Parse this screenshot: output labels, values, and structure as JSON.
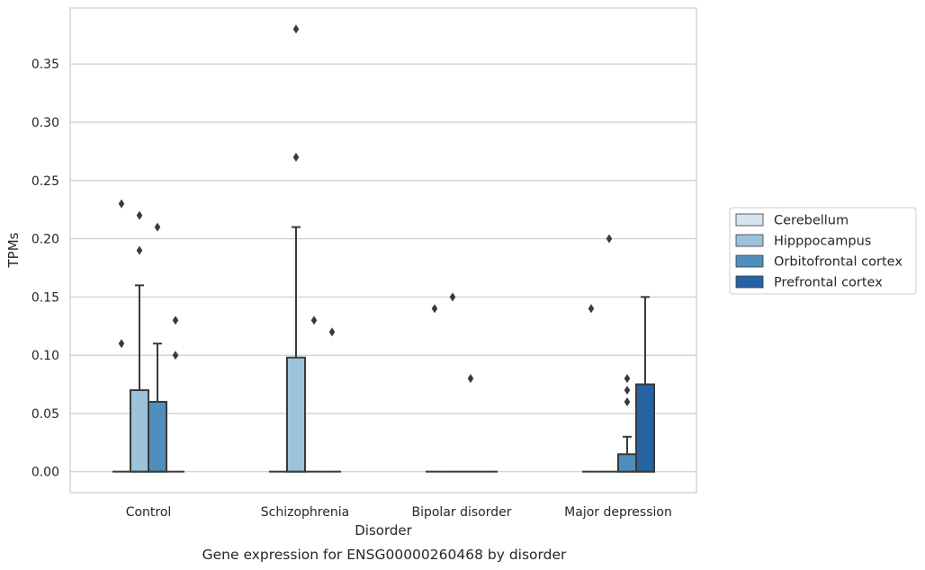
{
  "caption": "Gene expression for ENSG00000260468 by disorder",
  "colors": {
    "Cerebellum": "#d6e5f2",
    "Hipppocampus": "#9cc2dc",
    "Orbitofrontal cortex": "#4f8fbd",
    "Prefrontal cortex": "#2464a2",
    "grid": "#cccccc",
    "line": "#3a3a3a"
  },
  "chart_data": {
    "type": "box",
    "xlabel": "Disorder",
    "ylabel": "TPMs",
    "categories": [
      "Control",
      "Schizophrenia",
      "Bipolar disorder",
      "Major depression"
    ],
    "ylim": [
      -0.018,
      0.398
    ],
    "yticks": [
      0.0,
      0.05,
      0.1,
      0.15,
      0.2,
      0.25,
      0.3,
      0.35
    ],
    "ytick_labels": [
      "0.00",
      "0.05",
      "0.10",
      "0.15",
      "0.20",
      "0.25",
      "0.30",
      "0.35"
    ],
    "grid": true,
    "legend_position": "right",
    "series": [
      {
        "name": "Cerebellum",
        "boxes": [
          {
            "q1": 0,
            "median": 0,
            "q3": 0,
            "whisker_low": 0,
            "whisker_high": 0,
            "outliers": [
              0.11,
              0.23
            ]
          },
          {
            "q1": 0,
            "median": 0,
            "q3": 0,
            "whisker_low": 0,
            "whisker_high": 0,
            "outliers": []
          },
          {
            "q1": 0,
            "median": 0,
            "q3": 0,
            "whisker_low": 0,
            "whisker_high": 0,
            "outliers": [
              0.14
            ]
          },
          {
            "q1": 0,
            "median": 0,
            "q3": 0,
            "whisker_low": 0,
            "whisker_high": 0,
            "outliers": [
              0.14
            ]
          }
        ]
      },
      {
        "name": "Hipppocampus",
        "boxes": [
          {
            "q1": 0,
            "median": 0,
            "q3": 0.07,
            "whisker_low": 0,
            "whisker_high": 0.16,
            "outliers": [
              0.19,
              0.22
            ]
          },
          {
            "q1": 0,
            "median": 0,
            "q3": 0.098,
            "whisker_low": 0,
            "whisker_high": 0.21,
            "outliers": [
              0.27,
              0.38
            ]
          },
          {
            "q1": 0,
            "median": 0,
            "q3": 0,
            "whisker_low": 0,
            "whisker_high": 0,
            "outliers": [
              0.15
            ]
          },
          {
            "q1": 0,
            "median": 0,
            "q3": 0,
            "whisker_low": 0,
            "whisker_high": 0,
            "outliers": [
              0.2
            ]
          }
        ]
      },
      {
        "name": "Orbitofrontal cortex",
        "boxes": [
          {
            "q1": 0,
            "median": 0,
            "q3": 0.06,
            "whisker_low": 0,
            "whisker_high": 0.11,
            "outliers": [
              0.21
            ]
          },
          {
            "q1": 0,
            "median": 0,
            "q3": 0,
            "whisker_low": 0,
            "whisker_high": 0,
            "outliers": [
              0.13
            ]
          },
          {
            "q1": 0,
            "median": 0,
            "q3": 0,
            "whisker_low": 0,
            "whisker_high": 0,
            "outliers": [
              0.08
            ]
          },
          {
            "q1": 0,
            "median": 0,
            "q3": 0.015,
            "whisker_low": 0,
            "whisker_high": 0.03,
            "outliers": [
              0.06,
              0.07,
              0.08
            ]
          }
        ]
      },
      {
        "name": "Prefrontal cortex",
        "boxes": [
          {
            "q1": 0,
            "median": 0,
            "q3": 0,
            "whisker_low": 0,
            "whisker_high": 0,
            "outliers": [
              0.1,
              0.13
            ]
          },
          {
            "q1": 0,
            "median": 0,
            "q3": 0,
            "whisker_low": 0,
            "whisker_high": 0,
            "outliers": [
              0.12
            ]
          },
          {
            "q1": 0,
            "median": 0,
            "q3": 0,
            "whisker_low": 0,
            "whisker_high": 0,
            "outliers": []
          },
          {
            "q1": 0,
            "median": 0,
            "q3": 0.075,
            "whisker_low": 0,
            "whisker_high": 0.15,
            "outliers": []
          }
        ]
      }
    ]
  }
}
